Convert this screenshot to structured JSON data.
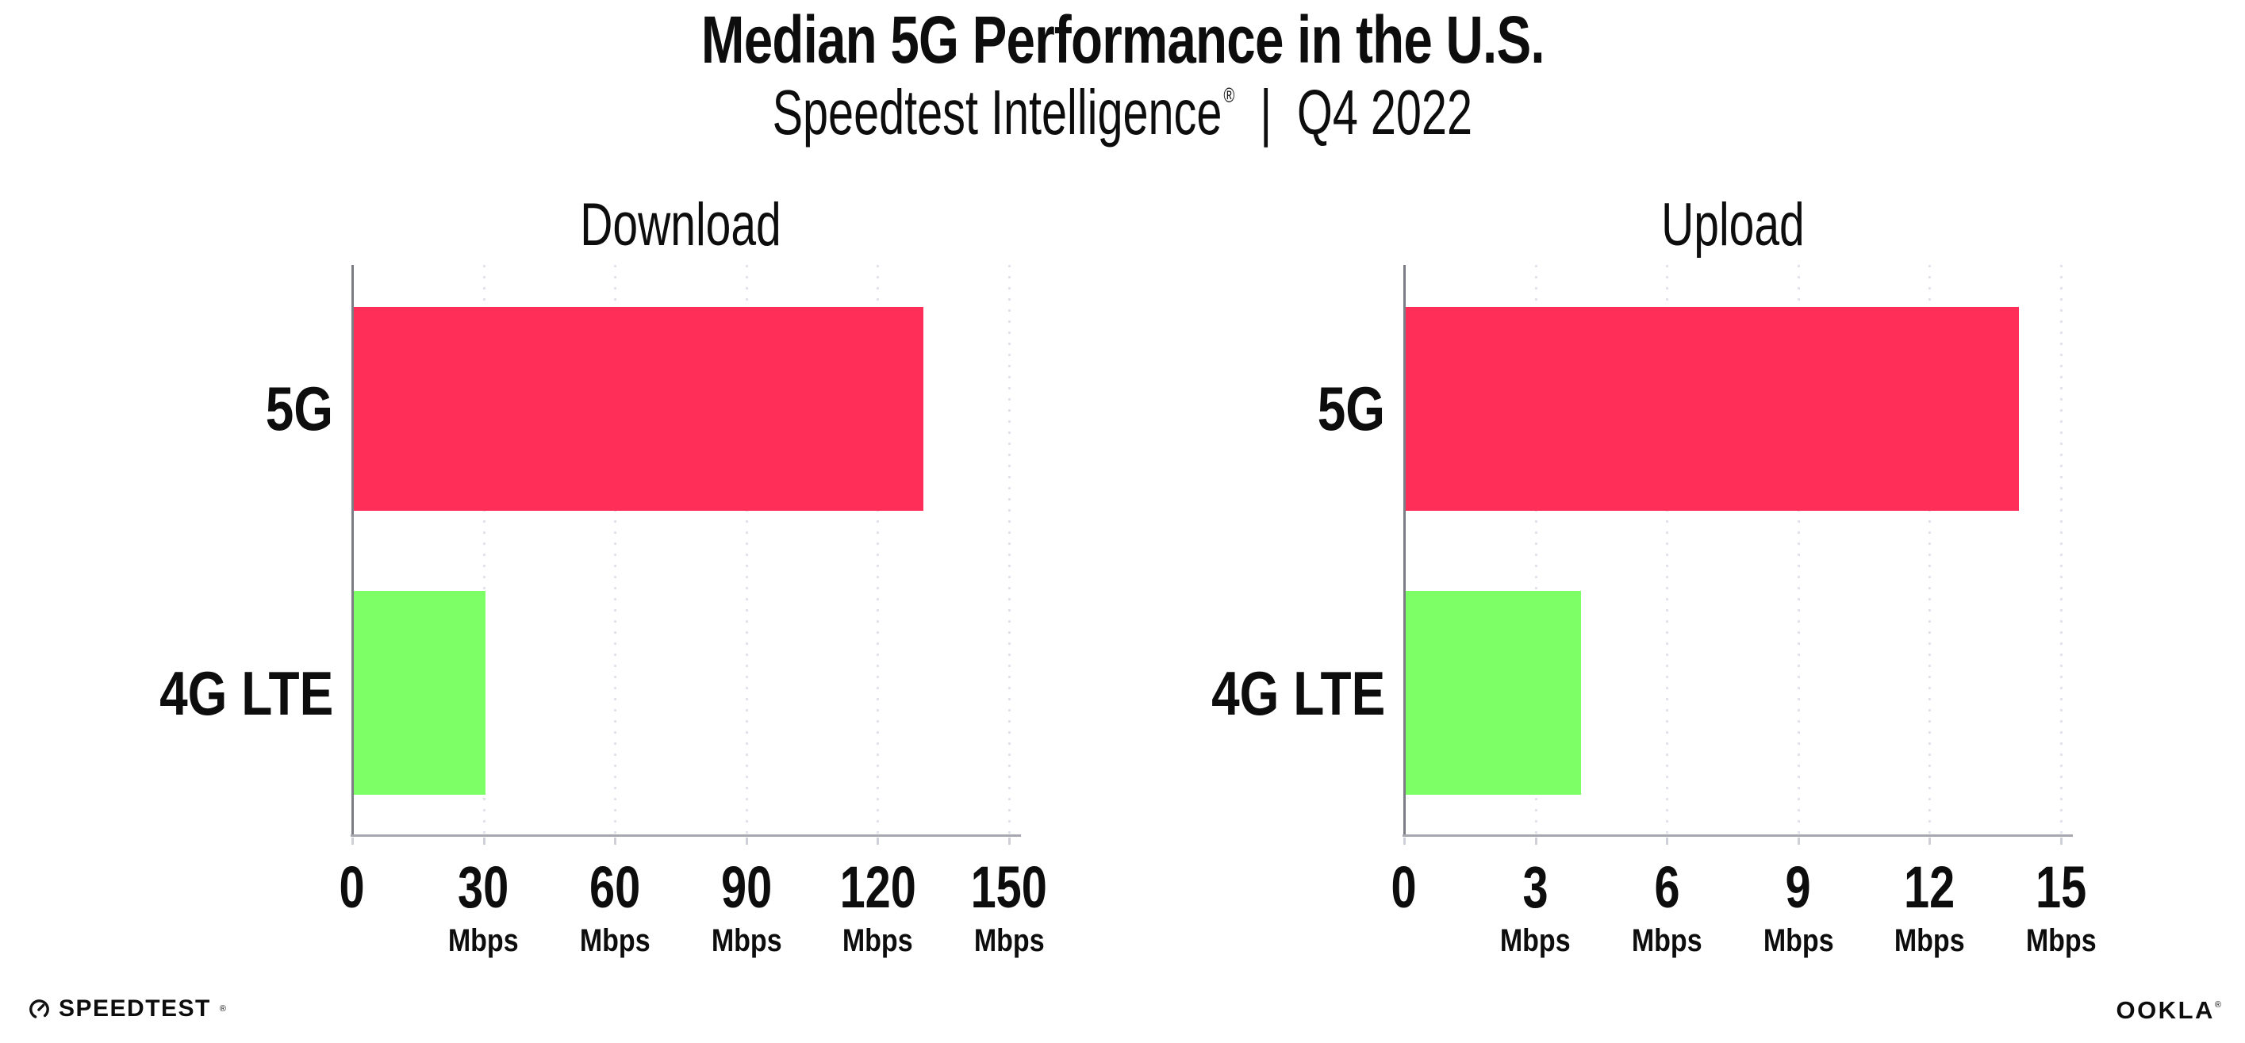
{
  "header": {
    "title": "Median 5G Performance in the U.S.",
    "subtitle_brand": "Speedtest Intelligence",
    "reg_mark": "®",
    "subtitle_sep": "|",
    "subtitle_period": "Q4 2022"
  },
  "chart_data": [
    {
      "type": "bar",
      "orientation": "horizontal",
      "title": "Download",
      "categories": [
        "5G",
        "4G LTE"
      ],
      "values": [
        130,
        30
      ],
      "unit": "Mbps",
      "xlabel": "",
      "ylabel": "",
      "xlim": [
        0,
        150
      ],
      "ticks": [
        0,
        30,
        60,
        90,
        120,
        150
      ],
      "grid": "vertical-dotted",
      "legend": "none",
      "bar_colors": [
        "#ff2e58",
        "#7dff66"
      ]
    },
    {
      "type": "bar",
      "orientation": "horizontal",
      "title": "Upload",
      "categories": [
        "5G",
        "4G LTE"
      ],
      "values": [
        14,
        4
      ],
      "unit": "Mbps",
      "xlabel": "",
      "ylabel": "",
      "xlim": [
        0,
        15
      ],
      "ticks": [
        0,
        3,
        6,
        9,
        12,
        15
      ],
      "grid": "vertical-dotted",
      "legend": "none",
      "bar_colors": [
        "#ff2e58",
        "#7dff66"
      ]
    }
  ],
  "footer": {
    "speedtest_label": "SPEEDTEST",
    "ookla_label": "OOKLA",
    "reg_mark": "®"
  },
  "colors": {
    "bar_5g": "#ff2e58",
    "bar_4g_lte": "#7dff66",
    "grid_line": "#e2e2ed",
    "axis_line": "#a7a7b0",
    "spine": "#7c7c84",
    "tick_mark": "#cfcfd8",
    "text": "#0d0d0d"
  }
}
